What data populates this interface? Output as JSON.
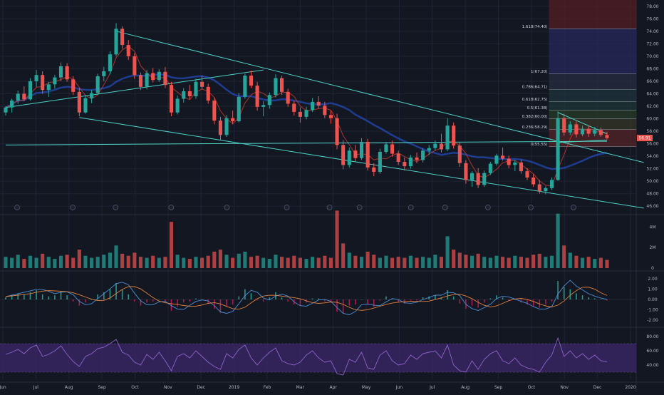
{
  "colors": {
    "background": "#131722",
    "grid": "#1f2433",
    "up": "#26a69a",
    "down": "#ef5350",
    "channel": "#4dd0c4",
    "ma_fast": "#c0392b",
    "ma_slow": "#2962ff",
    "macd_line": "#4a90d9",
    "signal_line": "#e0803a",
    "hist_pos": "#26a69a",
    "hist_neg": "#c2185b",
    "rsi_line": "#8e63c9",
    "rsi_band": "#3a2766",
    "last_price_tag": "#ef5350"
  },
  "chart_data": {
    "type": "candlestick",
    "price_axis": {
      "ticks": [
        "78.00",
        "76.00",
        "74.00",
        "72.00",
        "70.00",
        "68.00",
        "66.00",
        "64.00",
        "62.00",
        "60.00",
        "58.00",
        "56.00",
        "54.00",
        "52.00",
        "50.00",
        "48.00",
        "46.00"
      ],
      "range": [
        45,
        79
      ],
      "last_price": "56.91"
    },
    "time_axis": {
      "labels": [
        "Jun",
        "Jul",
        "Aug",
        "Sep",
        "Oct",
        "Nov",
        "Dec",
        "2019",
        "Feb",
        "Mar",
        "Apr",
        "May",
        "Jun",
        "Jul",
        "Aug",
        "Sep",
        "Oct",
        "Nov",
        "Dec",
        "2020"
      ]
    },
    "candles_ohlc": [
      [
        61,
        62,
        60.5,
        61.8
      ],
      [
        61.8,
        63.2,
        61,
        62.9
      ],
      [
        62.9,
        64.5,
        62.4,
        64
      ],
      [
        64,
        65.2,
        62.8,
        63.1
      ],
      [
        63.1,
        66.5,
        62.9,
        66
      ],
      [
        66,
        67.8,
        65.1,
        67
      ],
      [
        67,
        67.6,
        64,
        64.6
      ],
      [
        64.6,
        65.9,
        63.5,
        65.5
      ],
      [
        65.5,
        67,
        64.8,
        66.6
      ],
      [
        66.6,
        69,
        66,
        68.4
      ],
      [
        68.4,
        68.9,
        65.9,
        66.3
      ],
      [
        66.3,
        66.8,
        63.8,
        64.3
      ],
      [
        64.3,
        64.9,
        60.4,
        61
      ],
      [
        61,
        63.8,
        60.8,
        63.3
      ],
      [
        63.3,
        64.6,
        62.5,
        64.1
      ],
      [
        64.1,
        67.2,
        63.8,
        66.8
      ],
      [
        66.8,
        68.3,
        66,
        67.6
      ],
      [
        67.6,
        70.8,
        67.1,
        70.3
      ],
      [
        70.3,
        75.3,
        70,
        74.4
      ],
      [
        74.4,
        74.8,
        71.2,
        71.8
      ],
      [
        71.8,
        72.6,
        69.4,
        70
      ],
      [
        70,
        70.5,
        66.4,
        67
      ],
      [
        67,
        67.4,
        64.6,
        65.1
      ],
      [
        65.1,
        67.8,
        64.7,
        67.3
      ],
      [
        67.3,
        68.1,
        65.8,
        66.2
      ],
      [
        66.2,
        67.9,
        65.9,
        67.5
      ],
      [
        67.5,
        68.3,
        64.9,
        65.4
      ],
      [
        65.4,
        65.9,
        60.4,
        61
      ],
      [
        61,
        63.7,
        60.7,
        63.2
      ],
      [
        63.2,
        64.9,
        62.6,
        64.4
      ],
      [
        64.4,
        65.4,
        63.1,
        63.6
      ],
      [
        63.6,
        66.4,
        63.2,
        65.9
      ],
      [
        65.9,
        66.9,
        64.7,
        65.1
      ],
      [
        65.1,
        65.6,
        62.4,
        62.9
      ],
      [
        62.9,
        63.4,
        59.1,
        59.7
      ],
      [
        59.7,
        60.3,
        56.6,
        57.4
      ],
      [
        57.4,
        60.6,
        57.1,
        60.1
      ],
      [
        60.1,
        61.3,
        59.1,
        59.6
      ],
      [
        59.6,
        64.1,
        59.4,
        63.5
      ],
      [
        63.5,
        67.2,
        63.2,
        66.9
      ],
      [
        66.9,
        67.7,
        64.9,
        65.3
      ],
      [
        65.3,
        65.9,
        61.3,
        61.9
      ],
      [
        61.9,
        62.8,
        60.4,
        62.2
      ],
      [
        62.2,
        64.2,
        61.6,
        63.8
      ],
      [
        63.8,
        67.1,
        63.4,
        66.5
      ],
      [
        66.5,
        66.9,
        63.8,
        64.3
      ],
      [
        64.3,
        64.8,
        61.9,
        62.4
      ],
      [
        62.4,
        62.9,
        60.5,
        61.1
      ],
      [
        61.1,
        61.8,
        59.4,
        60.3
      ],
      [
        60.3,
        61.9,
        59.9,
        61.4
      ],
      [
        61.4,
        63.3,
        61.1,
        62.7
      ],
      [
        62.7,
        63.6,
        61.6,
        62.1
      ],
      [
        62.1,
        62.7,
        60.1,
        60.6
      ],
      [
        60.6,
        61.3,
        59.2,
        60.1
      ],
      [
        60.1,
        60.8,
        55.1,
        55.8
      ],
      [
        55.8,
        56.6,
        51.9,
        52.6
      ],
      [
        52.6,
        55.4,
        52.2,
        54.9
      ],
      [
        54.9,
        55.8,
        53.2,
        53.7
      ],
      [
        53.7,
        56.9,
        53.4,
        56.3
      ],
      [
        56.3,
        56.8,
        51.7,
        52.2
      ],
      [
        52.2,
        52.9,
        50.8,
        51.5
      ],
      [
        51.5,
        55.2,
        51.2,
        54.7
      ],
      [
        54.7,
        56.3,
        54.4,
        55.9
      ],
      [
        55.9,
        56.5,
        53.9,
        54.4
      ],
      [
        54.4,
        54.9,
        52.6,
        53.1
      ],
      [
        53.1,
        53.8,
        51.7,
        52.4
      ],
      [
        52.4,
        54.2,
        52,
        53.8
      ],
      [
        53.8,
        54.6,
        52.9,
        53.4
      ],
      [
        53.4,
        55.3,
        53,
        54.9
      ],
      [
        54.9,
        55.8,
        54.2,
        55.3
      ],
      [
        55.3,
        56.5,
        54.9,
        56
      ],
      [
        56,
        57.6,
        54.6,
        55.1
      ],
      [
        55.1,
        60.1,
        54.8,
        58.9
      ],
      [
        58.9,
        59.4,
        55.2,
        55.7
      ],
      [
        55.7,
        56.2,
        52.3,
        52.9
      ],
      [
        52.9,
        53.4,
        49.6,
        50.2
      ],
      [
        50.2,
        51.6,
        49.1,
        51.3
      ],
      [
        51.3,
        52.1,
        48.9,
        49.4
      ],
      [
        49.4,
        51.7,
        49.1,
        51.3
      ],
      [
        51.3,
        53.1,
        51,
        52.8
      ],
      [
        52.8,
        54.4,
        52.5,
        54.1
      ],
      [
        54.1,
        55.4,
        53.3,
        53.6
      ],
      [
        53.6,
        54.1,
        52.1,
        52.6
      ],
      [
        52.6,
        53.4,
        51.6,
        53
      ],
      [
        53,
        53.5,
        51.2,
        51.6
      ],
      [
        51.6,
        52.1,
        50.2,
        50.6
      ],
      [
        50.6,
        51.1,
        49.1,
        49.5
      ],
      [
        49.5,
        50.2,
        48,
        48.4
      ],
      [
        48.4,
        49.2,
        47.9,
        48.9
      ],
      [
        48.9,
        50.6,
        48.6,
        50.2
      ],
      [
        50.2,
        61.2,
        50.1,
        60.1
      ],
      [
        60.1,
        60.8,
        57.3,
        57.8
      ],
      [
        57.8,
        59.6,
        57.4,
        59.1
      ],
      [
        59.1,
        59.6,
        57,
        57.5
      ],
      [
        57.5,
        58.9,
        57.2,
        58.4
      ],
      [
        58.4,
        58.9,
        57.1,
        57.6
      ],
      [
        57.6,
        58.7,
        57.2,
        58.2
      ],
      [
        58.2,
        58.6,
        57.1,
        57.4
      ],
      [
        57.4,
        57.9,
        56.7,
        56.91
      ]
    ],
    "fibonacci_levels": [
      {
        "label": "0(55.55)",
        "value": 55.55
      },
      {
        "label": "0.236(58.29)",
        "value": 58.29
      },
      {
        "label": "0.382(60.00)",
        "value": 60.0
      },
      {
        "label": "0.5(61.38)",
        "value": 61.38
      },
      {
        "label": "0.618(62.75)",
        "value": 62.75
      },
      {
        "label": "0.786(64.71)",
        "value": 64.71
      },
      {
        "label": "1(67.20)",
        "value": 67.2
      },
      {
        "label": "1.618(74.40)",
        "value": 74.4
      }
    ],
    "volume_axis": {
      "ticks": [
        "4M",
        "2M",
        "0"
      ],
      "max": 5
    },
    "volume": [
      1.1,
      1.0,
      1.3,
      0.9,
      1.2,
      1.0,
      1.4,
      1.1,
      0.9,
      1.2,
      1.3,
      1.0,
      1.8,
      1.2,
      1.0,
      1.1,
      1.3,
      1.5,
      2.2,
      1.4,
      1.2,
      1.5,
      1.1,
      1.0,
      1.2,
      1.0,
      1.1,
      4.5,
      1.3,
      1.0,
      0.9,
      1.1,
      1.0,
      1.2,
      1.6,
      1.8,
      1.3,
      1.0,
      1.4,
      1.6,
      1.1,
      1.2,
      1.0,
      0.9,
      1.3,
      1.1,
      1.0,
      1.2,
      1.0,
      0.9,
      1.1,
      1.0,
      1.2,
      1.0,
      5.6,
      2.4,
      1.5,
      1.2,
      1.1,
      1.6,
      1.3,
      1.0,
      1.2,
      1.0,
      1.1,
      1.0,
      1.2,
      1.0,
      1.1,
      1.0,
      1.3,
      1.1,
      3.1,
      1.8,
      1.5,
      1.3,
      1.2,
      1.4,
      1.1,
      1.0,
      1.2,
      1.1,
      1.0,
      1.2,
      1.1,
      1.0,
      1.3,
      1.4,
      1.1,
      1.2,
      5.3,
      2.2,
      1.5,
      1.2,
      1.0,
      1.1,
      0.9,
      1.0,
      0.8
    ],
    "macd_axis": {
      "ticks": [
        "2.00",
        "1.00",
        "0.00",
        "-1.00",
        "-2.00"
      ],
      "range": [
        -2.5,
        2.5
      ]
    },
    "macd_hist": [
      0.2,
      0.4,
      0.6,
      0.5,
      0.7,
      0.9,
      0.5,
      0.3,
      0.4,
      0.8,
      0.4,
      -0.2,
      -0.6,
      -0.3,
      0.0,
      0.5,
      0.7,
      1.0,
      1.6,
      1.0,
      0.5,
      -0.2,
      -0.6,
      -0.3,
      -0.2,
      0.0,
      -0.2,
      -1.1,
      -0.7,
      -0.3,
      -0.2,
      0.1,
      0.0,
      -0.4,
      -0.9,
      -1.3,
      -0.7,
      -0.5,
      0.3,
      1.0,
      0.6,
      -0.1,
      -0.2,
      0.2,
      0.7,
      0.2,
      -0.2,
      -0.5,
      -0.6,
      -0.3,
      0.1,
      0.1,
      -0.2,
      -0.3,
      -1.2,
      -1.4,
      -0.6,
      -0.5,
      0.0,
      -0.5,
      -0.7,
      -0.1,
      0.3,
      0.0,
      -0.3,
      -0.4,
      -0.1,
      -0.1,
      0.2,
      0.3,
      0.4,
      0.2,
      0.9,
      0.3,
      -0.4,
      -0.9,
      -0.6,
      -0.8,
      -0.3,
      0.1,
      0.4,
      0.2,
      -0.1,
      0.0,
      -0.3,
      -0.5,
      -0.7,
      -0.8,
      -0.5,
      -0.2,
      1.8,
      1.2,
      1.0,
      0.6,
      0.4,
      0.2,
      0.1,
      0.0,
      -0.1
    ],
    "rsi_axis": {
      "ticks": [
        "80.00",
        "60.00",
        "40.00"
      ],
      "band": [
        30,
        70
      ],
      "range": [
        20,
        90
      ]
    },
    "rsi": [
      55,
      58,
      62,
      56,
      64,
      68,
      52,
      55,
      60,
      67,
      55,
      45,
      38,
      52,
      56,
      63,
      65,
      70,
      76,
      58,
      54,
      44,
      40,
      55,
      48,
      58,
      46,
      32,
      52,
      56,
      50,
      60,
      52,
      44,
      38,
      34,
      56,
      50,
      62,
      68,
      50,
      40,
      50,
      58,
      64,
      46,
      42,
      40,
      44,
      54,
      60,
      50,
      44,
      46,
      28,
      26,
      48,
      44,
      58,
      36,
      34,
      54,
      60,
      46,
      40,
      42,
      54,
      48,
      56,
      58,
      60,
      50,
      68,
      40,
      32,
      30,
      46,
      34,
      48,
      56,
      60,
      46,
      42,
      50,
      40,
      36,
      34,
      30,
      44,
      54,
      78,
      52,
      60,
      50,
      56,
      48,
      54,
      46,
      45
    ],
    "patterns": {
      "main_channel_upper": [
        [
          0.0,
          75.2
        ],
        [
          0.0,
          -1
        ]
      ],
      "main_channel_lower": [
        [
          0.0,
          60.2
        ],
        [
          0.0,
          -1
        ]
      ]
    }
  }
}
